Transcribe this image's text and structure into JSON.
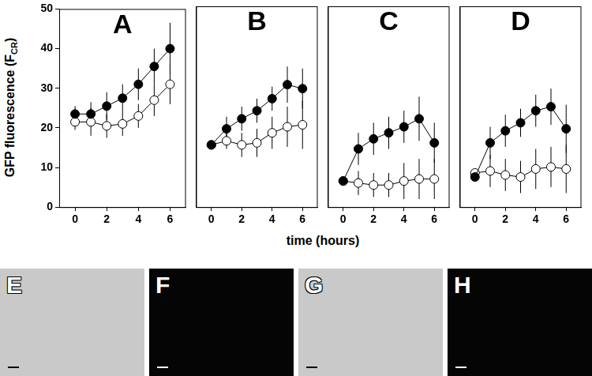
{
  "ylabel": {
    "text": "GFP fluorescence (F",
    "subscript": "CR",
    "text_after": ")"
  },
  "xlabel": "time (hours)",
  "micrograph_panels": [
    "E",
    "F",
    "G",
    "H"
  ],
  "chart_data": [
    {
      "type": "line",
      "title": "A",
      "x": [
        0,
        1,
        2,
        3,
        4,
        5,
        6
      ],
      "xlim": [
        -1,
        7
      ],
      "xticks": [
        0,
        2,
        4,
        6
      ],
      "ylim": [
        0,
        50
      ],
      "yticks": [
        0,
        10,
        20,
        30,
        40,
        50
      ],
      "grid": false,
      "series": [
        {
          "color": "#000000",
          "marker": "circle",
          "values": [
            23.5,
            23.5,
            25.5,
            27.5,
            31,
            35.5,
            40
          ],
          "errors": [
            2,
            3,
            3.5,
            3.5,
            4,
            4.5,
            6.5
          ]
        },
        {
          "color": "#000000",
          "marker": "circle_open",
          "values": [
            21.5,
            21.5,
            20.5,
            21,
            23,
            27,
            31
          ],
          "errors": [
            2,
            3.5,
            3,
            3,
            3,
            4,
            5
          ]
        }
      ]
    },
    {
      "type": "line",
      "title": "B",
      "x": [
        0,
        1,
        2,
        3,
        4,
        5,
        6
      ],
      "xlim": [
        -1,
        7
      ],
      "xticks": [
        0,
        2,
        4,
        6
      ],
      "ylim": [
        0,
        50
      ],
      "yticks": [
        0,
        10,
        20,
        30,
        40,
        50
      ],
      "grid": false,
      "tick_labels": "x",
      "series": [
        {
          "color": "#000000",
          "marker": "circle",
          "values": [
            15.5,
            19.5,
            22,
            24,
            27,
            30.5,
            29.5
          ],
          "errors": [
            1,
            3,
            3,
            3,
            3,
            4.5,
            5
          ]
        },
        {
          "color": "#000000",
          "marker": "circle_open",
          "values": [
            15.5,
            16.5,
            15.5,
            16,
            18.5,
            20,
            20.5
          ],
          "errors": [
            1,
            2,
            3,
            3.5,
            4,
            5,
            6
          ]
        }
      ]
    },
    {
      "type": "line",
      "title": "C",
      "x": [
        0,
        1,
        2,
        3,
        4,
        5,
        6
      ],
      "xlim": [
        -1,
        7
      ],
      "xticks": [
        0,
        2,
        4,
        6
      ],
      "ylim": [
        0,
        50
      ],
      "yticks": [
        0,
        10,
        20,
        30,
        40,
        50
      ],
      "grid": false,
      "tick_labels": "x",
      "series": [
        {
          "color": "#000000",
          "marker": "circle",
          "values": [
            6.5,
            14.5,
            17,
            18.5,
            20,
            22,
            16
          ],
          "errors": [
            1,
            4,
            4,
            4,
            4,
            5.5,
            5
          ]
        },
        {
          "color": "#000000",
          "marker": "circle_open",
          "values": [
            6.5,
            6,
            5.5,
            5.5,
            6.5,
            7,
            7
          ],
          "errors": [
            1,
            3,
            3,
            3,
            4.5,
            5,
            5
          ]
        }
      ]
    },
    {
      "type": "line",
      "title": "D",
      "x": [
        0,
        1,
        2,
        3,
        4,
        5,
        6
      ],
      "xlim": [
        -1,
        7
      ],
      "xticks": [
        0,
        2,
        4,
        6
      ],
      "ylim": [
        0,
        50
      ],
      "yticks": [
        0,
        10,
        20,
        30,
        40,
        50
      ],
      "grid": false,
      "tick_labels": "x",
      "series": [
        {
          "color": "#000000",
          "marker": "circle",
          "values": [
            7.5,
            16,
            19,
            21,
            24,
            25,
            19.5
          ],
          "errors": [
            1,
            4,
            4,
            3.5,
            4,
            4.5,
            6
          ]
        },
        {
          "color": "#000000",
          "marker": "circle_open",
          "values": [
            8.5,
            9,
            8,
            7.5,
            9.5,
            10,
            9.5
          ],
          "errors": [
            1,
            4,
            4,
            4,
            5,
            5,
            6
          ]
        }
      ]
    }
  ]
}
